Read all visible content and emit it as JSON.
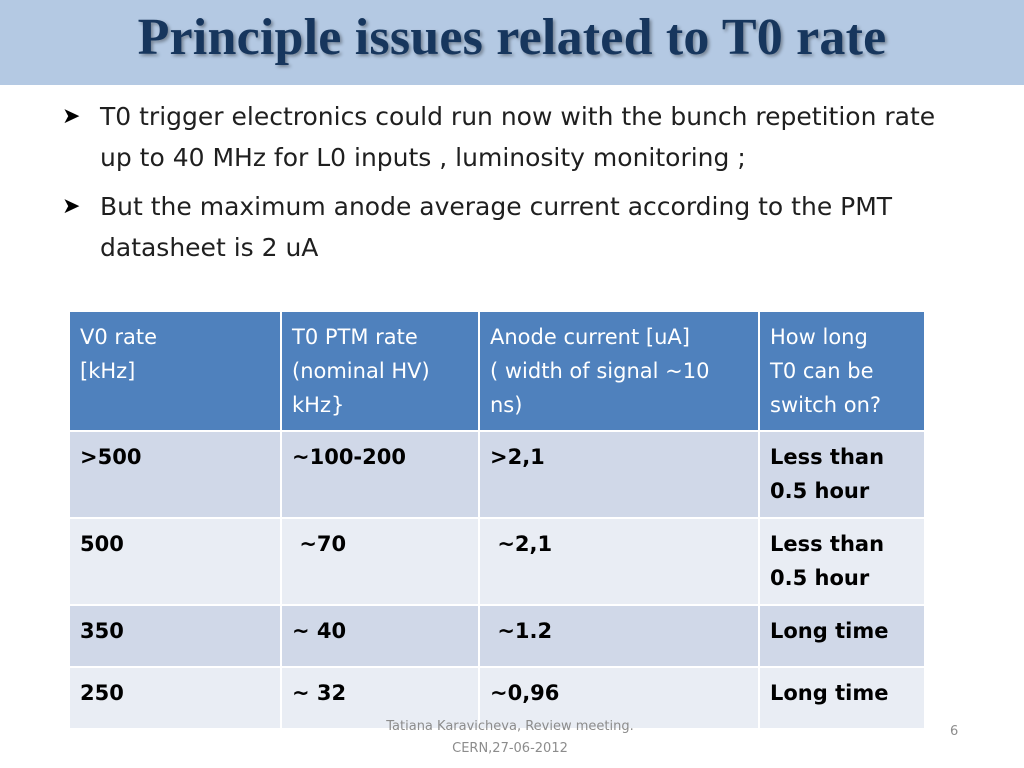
{
  "title": "Principle issues related  to T0 rate",
  "bullets": [
    {
      "icon": "arrow-bullet-icon",
      "text": "T0 trigger electronics  could run now with the bunch repetition rate up to 40 MHz for L0 inputs , luminosity monitoring ;"
    },
    {
      "icon": "arrow-bullet-icon",
      "text": "But the maximum anode average current according to the PMT datasheet  is  2  uA"
    }
  ],
  "table": {
    "headers": [
      "V0 rate\n[kHz]",
      "T0 PTM rate\n(nominal HV)\nkHz}",
      "Anode current [uA]\n( width of signal ~10\nns)",
      "How long\nT0 can be\nswitch on?"
    ],
    "rows": [
      [
        ">500",
        "~100-200",
        ">2,1",
        "Less than\n0.5 hour"
      ],
      [
        "500",
        " ~70",
        " ~2,1",
        "Less than\n0.5 hour"
      ],
      [
        "350",
        "~ 40",
        " ~1.2",
        "Long time"
      ],
      [
        "250",
        "~ 32",
        "~0,96",
        "Long time"
      ]
    ]
  },
  "footer": {
    "line1": "Tatiana Karavicheva, Review meeting.",
    "line2": "CERN,27-06-2012"
  },
  "slide_number": "6",
  "colors": {
    "title_bar": "#b4c9e3",
    "title_text": "#17365d",
    "table_header": "#4f81bd",
    "row_dark": "#d0d8e8",
    "row_light": "#e9edf4"
  }
}
